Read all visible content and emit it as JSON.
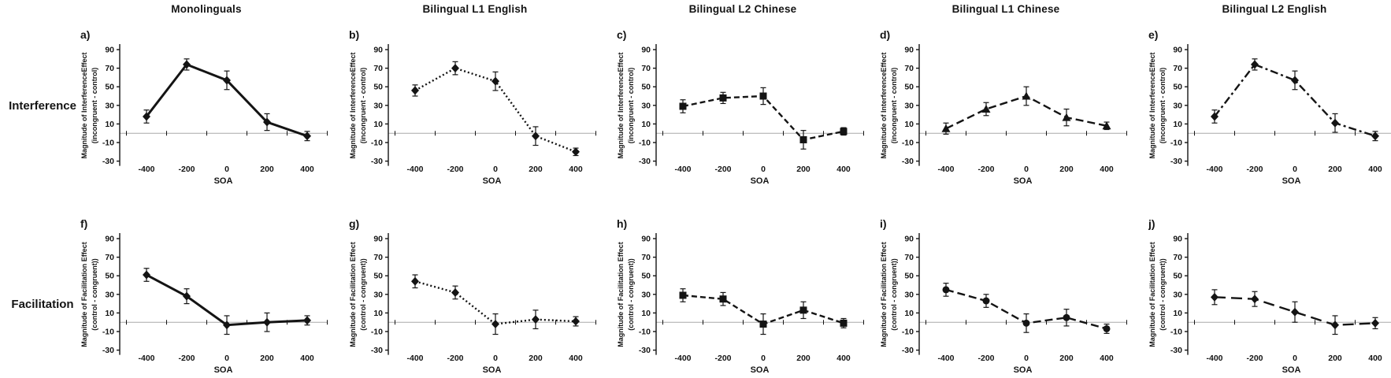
{
  "figure": {
    "row_labels": [
      "Interference",
      "Facilitation"
    ],
    "column_titles": [
      "Monolinguals",
      "Bilingual L1 English",
      "Bilingual L2 Chinese",
      "Bilingual L1 Chinese",
      "Bilingual L2 English"
    ]
  },
  "axis": {
    "xlabel": "SOA",
    "xticks": [
      -400,
      -200,
      0,
      200,
      400
    ],
    "yticks": [
      90,
      70,
      50,
      30,
      10,
      -10,
      -30
    ],
    "ylim": [
      -30,
      90
    ],
    "zero_line": true,
    "grid": false
  },
  "colors": {
    "line": "#141414",
    "zero_line": "#a8a8a8",
    "text": "#141414"
  },
  "chart_data": [
    {
      "panel": "a)",
      "row": "Interference",
      "column": "Monolinguals",
      "type": "line",
      "line_style": "solid",
      "marker": "diamond",
      "ylabel_line1": "Magnitude of InterferenceEffect",
      "ylabel_line2": "(incongruent - control)",
      "xlabel": "SOA",
      "x": [
        -400,
        -200,
        0,
        200,
        400
      ],
      "y": [
        18,
        74,
        57,
        12,
        -3
      ],
      "y_err": [
        7,
        6,
        10,
        9,
        5
      ]
    },
    {
      "panel": "b)",
      "row": "Interference",
      "column": "Bilingual L1 English",
      "type": "line",
      "line_style": "dotted",
      "marker": "diamond",
      "ylabel_line1": "Magnitude of InterferenceEffect",
      "ylabel_line2": "(incongruent - control)",
      "xlabel": "SOA",
      "x": [
        -400,
        -200,
        0,
        200,
        400
      ],
      "y": [
        46,
        70,
        56,
        -3,
        -20
      ],
      "y_err": [
        6,
        7,
        10,
        10,
        4
      ]
    },
    {
      "panel": "c)",
      "row": "Interference",
      "column": "Bilingual L2 Chinese",
      "type": "line",
      "line_style": "dashed",
      "marker": "square",
      "ylabel_line1": "Magnitude of InterferenceEffect",
      "ylabel_line2": "(incongruent - control)",
      "xlabel": "SOA",
      "x": [
        -400,
        -200,
        0,
        200,
        400
      ],
      "y": [
        29,
        38,
        40,
        -7,
        2
      ],
      "y_err": [
        7,
        6,
        9,
        10,
        4
      ]
    },
    {
      "panel": "d)",
      "row": "Interference",
      "column": "Bilingual L1 Chinese",
      "type": "line",
      "line_style": "dashed-long",
      "marker": "triangle",
      "ylabel_line1": "Magnitude of InterferenceEffect",
      "ylabel_line2": "(incongruent - control)",
      "xlabel": "SOA",
      "x": [
        -400,
        -200,
        0,
        200,
        400
      ],
      "y": [
        5,
        26,
        40,
        17,
        8
      ],
      "y_err": [
        6,
        7,
        10,
        9,
        4
      ]
    },
    {
      "panel": "e)",
      "row": "Interference",
      "column": "Bilingual L2 English",
      "type": "line",
      "line_style": "dashdot",
      "marker": "diamond",
      "ylabel_line1": "Magnitude of InterferenceEffect",
      "ylabel_line2": "(incongruent - control)",
      "xlabel": "SOA",
      "x": [
        -400,
        -200,
        0,
        200,
        400
      ],
      "y": [
        18,
        74,
        57,
        11,
        -3
      ],
      "y_err": [
        7,
        6,
        10,
        10,
        5
      ]
    },
    {
      "panel": "f)",
      "row": "Facilitation",
      "column": "Monolinguals",
      "type": "line",
      "line_style": "solid",
      "marker": "diamond",
      "ylabel_line1": "Magnitude of Facilitation Effect",
      "ylabel_line2": "(control - congruent))",
      "xlabel": "SOA",
      "x": [
        -400,
        -200,
        0,
        200,
        400
      ],
      "y": [
        51,
        28,
        -3,
        0,
        2
      ],
      "y_err": [
        7,
        8,
        10,
        10,
        5
      ]
    },
    {
      "panel": "g)",
      "row": "Facilitation",
      "column": "Bilingual L1 English",
      "type": "line",
      "line_style": "dotted",
      "marker": "diamond",
      "ylabel_line1": "Magnitude of Facilitation Effect",
      "ylabel_line2": "(control - congruent))",
      "xlabel": "SOA",
      "x": [
        -400,
        -200,
        0,
        200,
        400
      ],
      "y": [
        44,
        32,
        -2,
        3,
        1
      ],
      "y_err": [
        7,
        7,
        11,
        10,
        5
      ]
    },
    {
      "panel": "h)",
      "row": "Facilitation",
      "column": "Bilingual L2 Chinese",
      "type": "line",
      "line_style": "dashed",
      "marker": "square",
      "ylabel_line1": "Magnitude of Facilitation Effect",
      "ylabel_line2": "(control - congruent))",
      "xlabel": "SOA",
      "x": [
        -400,
        -200,
        0,
        200,
        400
      ],
      "y": [
        29,
        25,
        -2,
        13,
        -1
      ],
      "y_err": [
        7,
        7,
        11,
        9,
        5
      ]
    },
    {
      "panel": "i)",
      "row": "Facilitation",
      "column": "Bilingual L1 Chinese",
      "type": "line",
      "line_style": "dashed-long",
      "marker": "circle",
      "ylabel_line1": "Magnitude of Facilitation Effect",
      "ylabel_line2": "(control - congruent))",
      "xlabel": "SOA",
      "x": [
        -400,
        -200,
        0,
        200,
        400
      ],
      "y": [
        35,
        23,
        -1,
        5,
        -7
      ],
      "y_err": [
        7,
        7,
        10,
        9,
        5
      ]
    },
    {
      "panel": "j)",
      "row": "Facilitation",
      "column": "Bilingual L2 English",
      "type": "line",
      "line_style": "longdash",
      "marker": "diamond",
      "ylabel_line1": "Magnitude of Facilitation Effect",
      "ylabel_line2": "(control - congruent))",
      "xlabel": "SOA",
      "x": [
        -400,
        -200,
        0,
        200,
        400
      ],
      "y": [
        27,
        25,
        11,
        -3,
        -1
      ],
      "y_err": [
        8,
        8,
        11,
        10,
        6
      ]
    }
  ]
}
